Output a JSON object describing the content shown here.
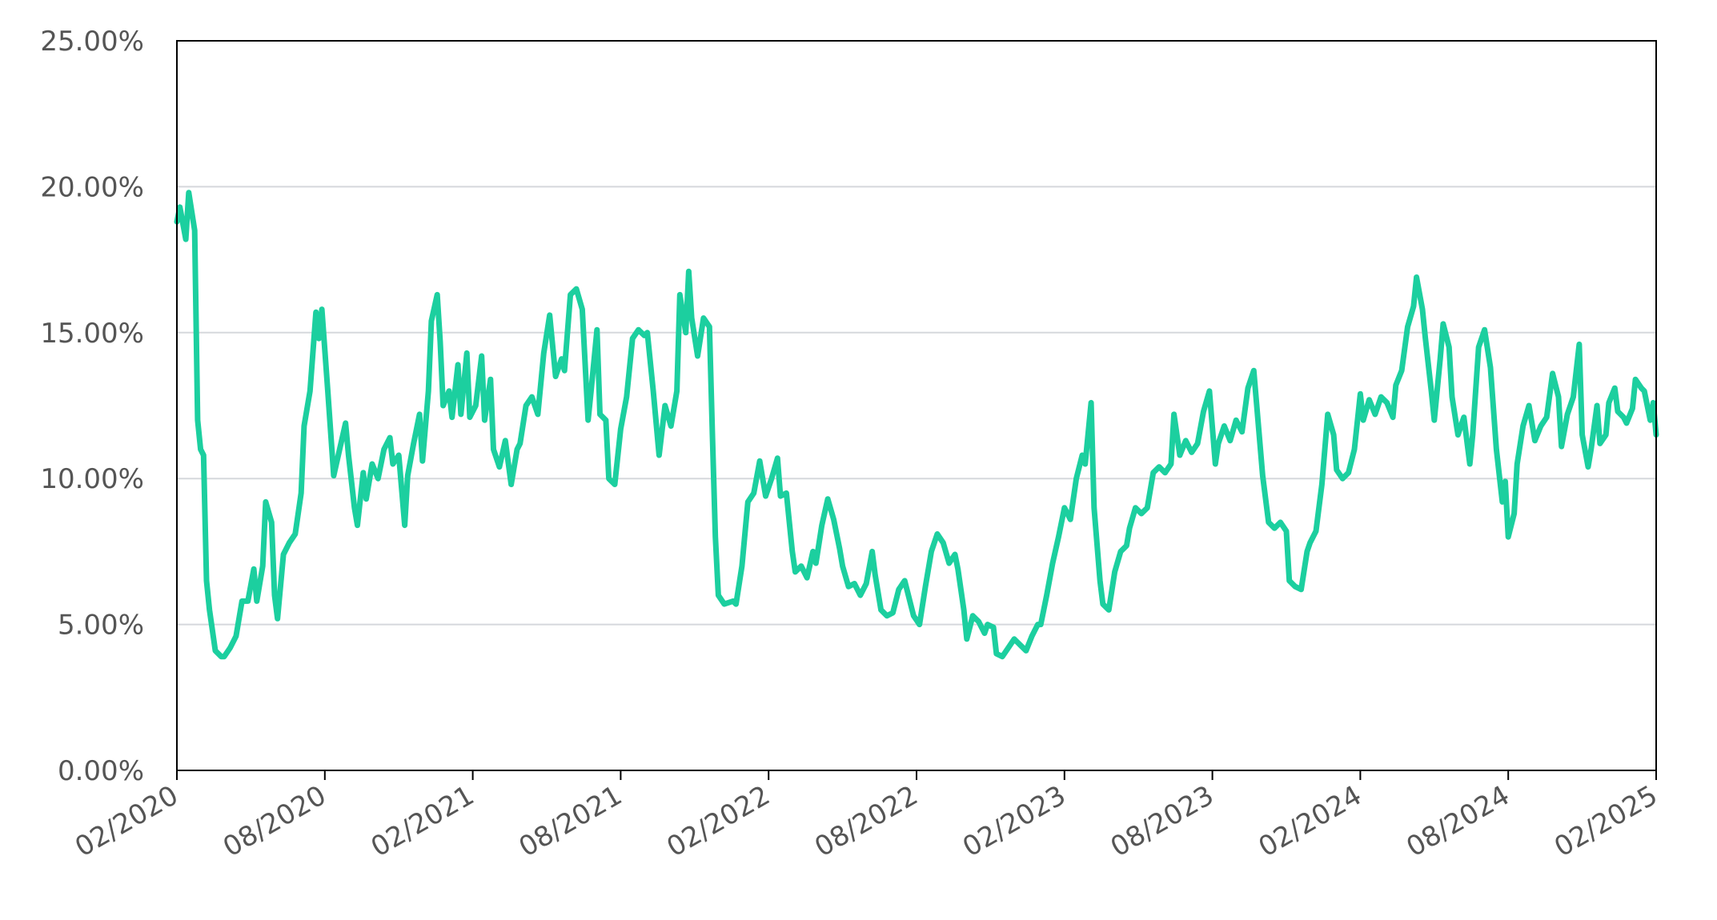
{
  "chart_data": {
    "type": "line",
    "x": [
      2020.08,
      2020.09,
      2020.11,
      2020.12,
      2020.14,
      2020.15,
      2020.16,
      2020.17,
      2020.18,
      2020.19,
      2020.21,
      2020.23,
      2020.24,
      2020.26,
      2020.28,
      2020.3,
      2020.32,
      2020.34,
      2020.35,
      2020.37,
      2020.38,
      2020.4,
      2020.41,
      2020.42,
      2020.44,
      2020.46,
      2020.48,
      2020.5,
      2020.51,
      2020.53,
      2020.55,
      2020.56,
      2020.57,
      2020.59,
      2020.61,
      2020.63,
      2020.65,
      2020.66,
      2020.68,
      2020.69,
      2020.71,
      2020.72,
      2020.74,
      2020.76,
      2020.78,
      2020.8,
      2020.81,
      2020.83,
      2020.85,
      2020.86,
      2020.88,
      2020.9,
      2020.91,
      2020.93,
      2020.94,
      2020.96,
      2020.97,
      2020.98,
      2021.0,
      2021.01,
      2021.03,
      2021.04,
      2021.06,
      2021.07,
      2021.09,
      2021.11,
      2021.12,
      2021.14,
      2021.15,
      2021.17,
      2021.19,
      2021.21,
      2021.23,
      2021.24,
      2021.26,
      2021.28,
      2021.3,
      2021.32,
      2021.34,
      2021.36,
      2021.38,
      2021.39,
      2021.41,
      2021.43,
      2021.45,
      2021.47,
      2021.48,
      2021.5,
      2021.51,
      2021.53,
      2021.54,
      2021.56,
      2021.58,
      2021.6,
      2021.62,
      2021.64,
      2021.66,
      2021.67,
      2021.69,
      2021.71,
      2021.73,
      2021.75,
      2021.77,
      2021.78,
      2021.8,
      2021.81,
      2021.82,
      2021.84,
      2021.86,
      2021.88,
      2021.89,
      2021.9,
      2021.91,
      2021.93,
      2021.96,
      2021.97,
      2021.99,
      2022.01,
      2022.03,
      2022.05,
      2022.07,
      2022.09,
      2022.11,
      2022.12,
      2022.14,
      2022.16,
      2022.17,
      2022.19,
      2022.21,
      2022.23,
      2022.24,
      2022.26,
      2022.28,
      2022.3,
      2022.32,
      2022.33,
      2022.35,
      2022.37,
      2022.39,
      2022.41,
      2022.43,
      2022.44,
      2022.46,
      2022.48,
      2022.5,
      2022.52,
      2022.54,
      2022.56,
      2022.57,
      2022.59,
      2022.61,
      2022.63,
      2022.65,
      2022.67,
      2022.69,
      2022.71,
      2022.72,
      2022.74,
      2022.75,
      2022.77,
      2022.79,
      2022.81,
      2022.82,
      2022.84,
      2022.85,
      2022.87,
      2022.89,
      2022.91,
      2022.93,
      2022.95,
      2022.97,
      2022.99,
      2023.0,
      2023.02,
      2023.04,
      2023.06,
      2023.08,
      2023.1,
      2023.12,
      2023.14,
      2023.15,
      2023.17,
      2023.18,
      2023.2,
      2023.21,
      2023.23,
      2023.25,
      2023.27,
      2023.29,
      2023.3,
      2023.32,
      2023.34,
      2023.36,
      2023.38,
      2023.4,
      2023.42,
      2023.44,
      2023.45,
      2023.47,
      2023.49,
      2023.51,
      2023.53,
      2023.55,
      2023.57,
      2023.59,
      2023.6,
      2023.62,
      2023.64,
      2023.66,
      2023.68,
      2023.7,
      2023.72,
      2023.73,
      2023.75,
      2023.77,
      2023.79,
      2023.81,
      2023.83,
      2023.84,
      2023.86,
      2023.88,
      2023.9,
      2023.91,
      2023.93,
      2023.95,
      2023.97,
      2023.99,
      2024.0,
      2024.02,
      2024.04,
      2024.06,
      2024.08,
      2024.09,
      2024.11,
      2024.13,
      2024.15,
      2024.17,
      2024.19,
      2024.2,
      2024.22,
      2024.24,
      2024.26,
      2024.27,
      2024.29,
      2024.3,
      2024.32,
      2024.33,
      2024.35,
      2024.36,
      2024.38,
      2024.39,
      2024.41,
      2024.43,
      2024.45,
      2024.46,
      2024.48,
      2024.5,
      2024.52,
      2024.54,
      2024.56,
      2024.57,
      2024.58,
      2024.6,
      2024.61,
      2024.63,
      2024.65,
      2024.67,
      2024.69,
      2024.71,
      2024.73,
      2024.75,
      2024.76,
      2024.78,
      2024.8,
      2024.82,
      2024.83,
      2024.85,
      2024.86,
      2024.88,
      2024.89,
      2024.91,
      2024.92,
      2024.94,
      2024.95,
      2024.97,
      2024.98,
      2025.0,
      2025.01,
      2025.03,
      2025.04,
      2025.06,
      2025.07,
      2025.08
    ],
    "values": [
      18.8,
      19.3,
      18.2,
      19.8,
      18.5,
      12,
      11,
      10.8,
      6.5,
      5.5,
      4.1,
      3.9,
      3.9,
      4.2,
      4.6,
      5.8,
      5.8,
      6.9,
      5.8,
      7,
      9.2,
      8.5,
      6,
      5.2,
      7.4,
      7.8,
      8.1,
      9.5,
      11.8,
      13,
      15.7,
      14.8,
      15.8,
      13,
      10.1,
      11,
      11.9,
      10.8,
      9,
      8.4,
      10.2,
      9.3,
      10.5,
      10,
      11,
      11.4,
      10.5,
      10.8,
      8.4,
      10.1,
      11.2,
      12.2,
      10.6,
      13,
      15.4,
      16.3,
      14.7,
      12.5,
      13,
      12.1,
      13.9,
      12.2,
      14.3,
      12.1,
      12.5,
      14.2,
      12,
      13.4,
      11,
      10.4,
      11.3,
      9.8,
      11,
      11.2,
      12.5,
      12.8,
      12.2,
      14.3,
      15.6,
      13.5,
      14.1,
      13.7,
      16.3,
      16.5,
      15.8,
      12,
      13,
      15.1,
      12.2,
      12,
      10,
      9.8,
      11.7,
      12.8,
      14.8,
      15.1,
      14.9,
      15,
      13,
      10.8,
      12.5,
      11.8,
      13,
      16.3,
      15,
      17.1,
      15.5,
      14.2,
      15.5,
      15.2,
      11.5,
      8,
      6,
      5.7,
      5.8,
      5.7,
      7,
      9.2,
      9.5,
      10.6,
      9.4,
      10,
      10.7,
      9.4,
      9.5,
      7.5,
      6.8,
      7,
      6.6,
      7.5,
      7.1,
      8.4,
      9.3,
      8.6,
      7.6,
      7,
      6.3,
      6.4,
      6,
      6.4,
      7.5,
      6.7,
      5.5,
      5.3,
      5.4,
      6.2,
      6.5,
      5.7,
      5.3,
      5,
      6.3,
      7.5,
      8.1,
      7.8,
      7.1,
      7.4,
      6.9,
      5.5,
      4.5,
      5.3,
      5.1,
      4.7,
      5,
      4.9,
      4,
      3.9,
      4.2,
      4.5,
      4.3,
      4.1,
      4.6,
      5,
      5,
      6,
      7.1,
      8,
      9,
      8.6,
      10,
      10.8,
      10.5,
      12.6,
      9,
      6.5,
      5.7,
      5.5,
      6.8,
      7.5,
      7.7,
      8.3,
      9,
      8.8,
      9,
      10.2,
      10.4,
      10.2,
      10.5,
      12.2,
      10.8,
      11.3,
      10.9,
      11.2,
      12.3,
      13,
      10.5,
      11.2,
      11.8,
      11.3,
      12,
      11.6,
      13.1,
      13.7,
      12.5,
      10.1,
      8.5,
      8.3,
      8.5,
      8.2,
      6.5,
      6.3,
      6.2,
      7.5,
      7.8,
      8.2,
      9.8,
      12.2,
      11.5,
      10.3,
      10,
      10.2,
      11,
      12.9,
      12,
      12.7,
      12.2,
      12.8,
      12.6,
      12.1,
      13.2,
      13.7,
      15.2,
      15.9,
      16.9,
      15.8,
      14.8,
      13,
      12,
      14.1,
      15.3,
      14.5,
      12.8,
      11.5,
      12.1,
      10.5,
      11.5,
      14.5,
      15.1,
      13.8,
      11,
      9.2,
      9.9,
      8,
      8.8,
      10.5,
      11.8,
      12.5,
      11.3,
      11.8,
      12.1,
      13.6,
      12.8,
      11.1,
      12.2,
      12.8,
      14.6,
      11.5,
      10.4,
      11,
      12.5,
      11.2,
      11.5,
      12.6,
      13.1,
      12.3,
      12.1,
      11.9,
      12.4,
      13.4,
      13.1,
      13,
      12,
      12.6,
      11.5
    ],
    "color": "#1ccf9f",
    "xlim": [
      2020.08,
      2025.08
    ],
    "xticks": [
      {
        "value": 2020.08,
        "label": "02/2020"
      },
      {
        "value": 2020.58,
        "label": "08/2020"
      },
      {
        "value": 2021.08,
        "label": "02/2021"
      },
      {
        "value": 2021.58,
        "label": "08/2021"
      },
      {
        "value": 2022.08,
        "label": "02/2022"
      },
      {
        "value": 2022.58,
        "label": "08/2022"
      },
      {
        "value": 2023.08,
        "label": "02/2023"
      },
      {
        "value": 2023.58,
        "label": "08/2023"
      },
      {
        "value": 2024.08,
        "label": "02/2024"
      },
      {
        "value": 2024.58,
        "label": "08/2024"
      },
      {
        "value": 2025.08,
        "label": "02/2025"
      }
    ],
    "ylim": [
      0,
      25
    ],
    "yticks": [
      {
        "value": 0,
        "label": "0.00%"
      },
      {
        "value": 5,
        "label": "5.00%"
      },
      {
        "value": 10,
        "label": "10.00%"
      },
      {
        "value": 15,
        "label": "15.00%"
      },
      {
        "value": 20,
        "label": "20.00%"
      },
      {
        "value": 25,
        "label": "25.00%"
      }
    ],
    "grid": true
  }
}
